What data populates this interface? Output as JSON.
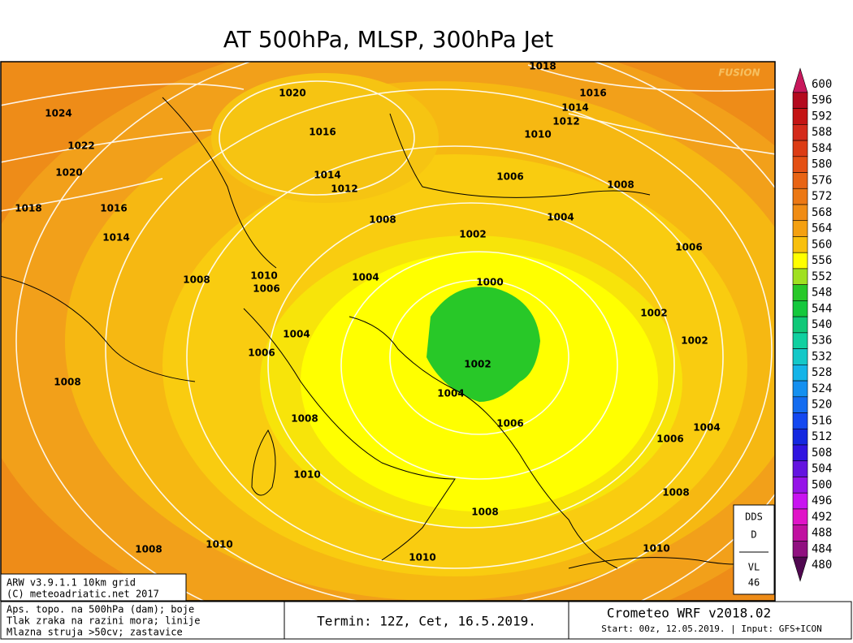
{
  "header": {
    "title": "AT 500hPa, MLSP, 300hPa Jet"
  },
  "watermark": "FUSION",
  "isobars": [
    1018,
    1020,
    1016,
    1014,
    1024,
    1012,
    1010,
    1016,
    1022,
    1020,
    1014,
    1006,
    1012,
    1008,
    1018,
    1016,
    1008,
    1004,
    1014,
    1002,
    1006,
    1010,
    1008,
    1006,
    1004,
    1000,
    1002,
    1004,
    1002,
    1006,
    1002,
    1008,
    1004,
    1008,
    1006,
    1004,
    1006,
    1010,
    1008,
    1008,
    1010,
    1008,
    1010,
    1010
  ],
  "legend": {
    "levels": [
      {
        "value": 600,
        "color": "#c8185c"
      },
      {
        "value": 596,
        "color": "#b40a1e"
      },
      {
        "value": 592,
        "color": "#c41414"
      },
      {
        "value": 588,
        "color": "#d42a1a"
      },
      {
        "value": 584,
        "color": "#dc3c14"
      },
      {
        "value": 580,
        "color": "#e45014"
      },
      {
        "value": 576,
        "color": "#e86414"
      },
      {
        "value": 572,
        "color": "#ec7814"
      },
      {
        "value": 568,
        "color": "#f08c14"
      },
      {
        "value": 564,
        "color": "#f4a010"
      },
      {
        "value": 560,
        "color": "#f8c00c"
      },
      {
        "value": 556,
        "color": "#ffff00"
      },
      {
        "value": 552,
        "color": "#a0e020"
      },
      {
        "value": 548,
        "color": "#28c828"
      },
      {
        "value": 544,
        "color": "#14c83c"
      },
      {
        "value": 540,
        "color": "#10c878"
      },
      {
        "value": 536,
        "color": "#10d0a0"
      },
      {
        "value": 532,
        "color": "#14c8c8"
      },
      {
        "value": 528,
        "color": "#14b4e8"
      },
      {
        "value": 524,
        "color": "#1490f0"
      },
      {
        "value": 520,
        "color": "#146cf0"
      },
      {
        "value": 516,
        "color": "#1448f0"
      },
      {
        "value": 512,
        "color": "#1428e0"
      },
      {
        "value": 508,
        "color": "#3014e0"
      },
      {
        "value": 504,
        "color": "#6414e0"
      },
      {
        "value": 500,
        "color": "#9614e8"
      },
      {
        "value": 496,
        "color": "#c814f0"
      },
      {
        "value": 492,
        "color": "#e014c8"
      },
      {
        "value": 488,
        "color": "#c010a0"
      },
      {
        "value": 484,
        "color": "#901080"
      },
      {
        "value": 480,
        "color": "#500850"
      }
    ]
  },
  "info": {
    "model": "ARW v3.9.1.1 10km grid",
    "copyright": "(C) meteoadriatic.net 2017"
  },
  "description": [
    "Aps. topo. na 500hPa (dam); boje",
    "Tlak zraka na razini mora; linije",
    "Mlazna struja >50cv; zastavice"
  ],
  "termin": "Termin: 12Z, Cet, 16.5.2019.",
  "crometeo": {
    "title": "Crometeo WRF v2018.02",
    "start": "Start: 00z, 12.05.2019. | Input: GFS+ICON"
  },
  "dds": {
    "line1": "DDS",
    "line2": "D",
    "line3": "VL",
    "line4": "46"
  }
}
